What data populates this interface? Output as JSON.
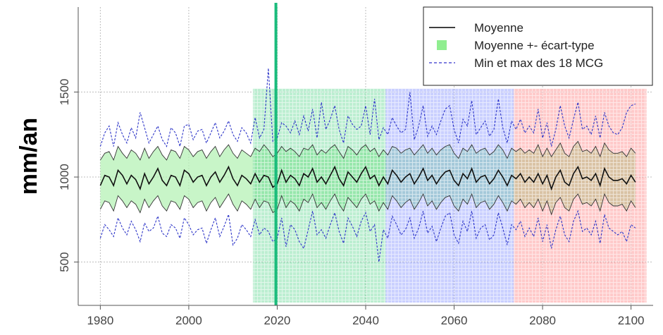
{
  "chart_data": {
    "type": "line",
    "ylabel": "mm/an",
    "xlim": [
      1975,
      2105
    ],
    "ylim": [
      245,
      2000
    ],
    "x_ticks": [
      1980,
      2000,
      2020,
      2040,
      2060,
      2080,
      2100
    ],
    "y_ticks": [
      500,
      1000,
      1500
    ],
    "grid": true,
    "legend_position": "top-right",
    "legend": [
      {
        "label": "Moyenne",
        "kind": "solid-line",
        "color": "#000000"
      },
      {
        "label": "Moyenne +- écart-type",
        "kind": "filled-square",
        "color": "#90ee90"
      },
      {
        "label": "Min et max des 18 MCG",
        "kind": "dashed-line",
        "color": "#3333cc"
      }
    ],
    "vertical_marker": {
      "x": 2019.7,
      "color": "#1abc7c"
    },
    "periods": [
      {
        "start": 2014.5,
        "end": 2044.5,
        "top": 1520,
        "color": "#2ecc71"
      },
      {
        "start": 2044.5,
        "end": 2073.5,
        "top": 1520,
        "color": "#5b6cff"
      },
      {
        "start": 2073.5,
        "end": 2103.5,
        "top": 1520,
        "color": "#ff5a5a"
      }
    ],
    "series": [
      {
        "name": "Moyenne",
        "x_start": 1980,
        "values": [
          950,
          1010,
          1000,
          950,
          1040,
          1010,
          960,
          1010,
          985,
          930,
          1020,
          960,
          1000,
          1050,
          980,
          950,
          1010,
          1000,
          950,
          1040,
          1020,
          970,
          1000,
          1010,
          950,
          1000,
          1030,
          970,
          1010,
          1060,
          990,
          950,
          1010,
          990,
          960,
          1020,
          970,
          1010,
          1000,
          940,
          960,
          1040,
          970,
          1010,
          990,
          950,
          1020,
          1000,
          1050,
          970,
          1000,
          960,
          1010,
          1060,
          990,
          950,
          1030,
          1000,
          970,
          1020,
          1060,
          990,
          1010,
          950,
          1000,
          960,
          1040,
          1010,
          970,
          1000,
          1020,
          960,
          1000,
          1050,
          980,
          1010,
          960,
          1000,
          1030,
          1040,
          980,
          950,
          1020,
          990,
          1050,
          970,
          1000,
          1010,
          960,
          990,
          1040,
          1000,
          950,
          1010,
          990,
          1020,
          970,
          1000,
          970,
          1020,
          960,
          1010,
          930,
          1000,
          1040,
          970,
          950,
          1020,
          1060,
          990,
          1000,
          980,
          1020,
          950,
          1050,
          1000,
          980,
          980,
          990,
          960,
          1010,
          970
        ]
      },
      {
        "name": "Moyenne + écart-type",
        "x_start": 1980,
        "values": [
          1100,
          1140,
          1150,
          1100,
          1180,
          1140,
          1110,
          1160,
          1140,
          1100,
          1170,
          1110,
          1150,
          1180,
          1130,
          1100,
          1160,
          1150,
          1110,
          1180,
          1160,
          1120,
          1150,
          1160,
          1110,
          1150,
          1180,
          1120,
          1160,
          1190,
          1140,
          1110,
          1160,
          1140,
          1120,
          1170,
          1150,
          1190,
          1160,
          1120,
          1140,
          1180,
          1150,
          1170,
          1150,
          1120,
          1170,
          1160,
          1190,
          1130,
          1160,
          1140,
          1170,
          1190,
          1150,
          1110,
          1180,
          1160,
          1130,
          1170,
          1190,
          1150,
          1170,
          1120,
          1160,
          1130,
          1180,
          1170,
          1140,
          1160,
          1170,
          1130,
          1160,
          1190,
          1140,
          1170,
          1130,
          1160,
          1180,
          1190,
          1140,
          1110,
          1170,
          1150,
          1190,
          1140,
          1160,
          1170,
          1130,
          1150,
          1190,
          1160,
          1110,
          1170,
          1150,
          1170,
          1140,
          1160,
          1140,
          1190,
          1120,
          1170,
          1120,
          1160,
          1200,
          1140,
          1120,
          1180,
          1210,
          1150,
          1160,
          1140,
          1180,
          1120,
          1200,
          1160,
          1140,
          1140,
          1150,
          1120,
          1170,
          1140
        ]
      },
      {
        "name": "Moyenne - écart-type",
        "x_start": 1980,
        "values": [
          810,
          860,
          850,
          800,
          890,
          860,
          820,
          860,
          840,
          790,
          870,
          820,
          860,
          890,
          830,
          800,
          860,
          850,
          810,
          890,
          870,
          820,
          850,
          860,
          800,
          850,
          880,
          820,
          860,
          900,
          840,
          800,
          860,
          840,
          810,
          870,
          820,
          860,
          850,
          790,
          810,
          890,
          820,
          860,
          840,
          800,
          870,
          850,
          900,
          820,
          850,
          810,
          860,
          900,
          840,
          800,
          880,
          850,
          820,
          870,
          900,
          840,
          860,
          800,
          850,
          810,
          890,
          860,
          820,
          850,
          870,
          810,
          850,
          900,
          830,
          860,
          810,
          850,
          880,
          890,
          830,
          800,
          870,
          840,
          900,
          820,
          850,
          860,
          810,
          840,
          890,
          850,
          800,
          860,
          840,
          870,
          820,
          850,
          820,
          870,
          800,
          860,
          780,
          850,
          880,
          820,
          800,
          870,
          900,
          840,
          850,
          830,
          870,
          800,
          900,
          850,
          830,
          830,
          840,
          800,
          860,
          820
        ]
      },
      {
        "name": "Max des 18 MCG",
        "x_start": 1980,
        "values": [
          1180,
          1260,
          1300,
          1180,
          1320,
          1250,
          1200,
          1290,
          1230,
          1380,
          1290,
          1200,
          1250,
          1300,
          1220,
          1180,
          1290,
          1260,
          1180,
          1300,
          1310,
          1220,
          1270,
          1280,
          1200,
          1260,
          1320,
          1230,
          1270,
          1330,
          1250,
          1210,
          1290,
          1260,
          1200,
          1350,
          1230,
          1280,
          1640,
          1210,
          1230,
          1320,
          1300,
          1260,
          1330,
          1250,
          1360,
          1270,
          1400,
          1230,
          1440,
          1280,
          1340,
          1420,
          1280,
          1200,
          1360,
          1310,
          1280,
          1300,
          1420,
          1250,
          1460,
          1220,
          1290,
          1250,
          1350,
          1300,
          1260,
          1280,
          1500,
          1220,
          1300,
          1420,
          1240,
          1300,
          1250,
          1330,
          1400,
          1420,
          1280,
          1200,
          1340,
          1300,
          1450,
          1250,
          1290,
          1330,
          1240,
          1280,
          1460,
          1290,
          1200,
          1330,
          1280,
          1340,
          1260,
          1300,
          1260,
          1400,
          1230,
          1320,
          1180,
          1280,
          1420,
          1300,
          1230,
          1340,
          1440,
          1280,
          1300,
          1250,
          1360,
          1230,
          1380,
          1300,
          1260,
          1250,
          1290,
          1380,
          1420,
          1430
        ]
      },
      {
        "name": "Min des 18 MCG",
        "x_start": 1980,
        "values": [
          640,
          720,
          690,
          650,
          760,
          700,
          660,
          740,
          690,
          620,
          730,
          680,
          700,
          770,
          670,
          650,
          720,
          700,
          640,
          760,
          720,
          660,
          690,
          700,
          610,
          690,
          760,
          650,
          710,
          780,
          600,
          640,
          720,
          690,
          650,
          750,
          660,
          700,
          680,
          620,
          640,
          760,
          590,
          720,
          690,
          620,
          580,
          690,
          800,
          660,
          690,
          640,
          720,
          790,
          680,
          610,
          760,
          710,
          650,
          740,
          790,
          680,
          720,
          500,
          690,
          640,
          770,
          720,
          660,
          690,
          760,
          640,
          700,
          800,
          670,
          710,
          620,
          700,
          770,
          790,
          660,
          610,
          740,
          680,
          800,
          640,
          700,
          720,
          630,
          660,
          790,
          700,
          600,
          720,
          690,
          740,
          650,
          700,
          650,
          760,
          620,
          720,
          580,
          690,
          770,
          660,
          620,
          740,
          800,
          680,
          700,
          660,
          740,
          610,
          780,
          700,
          680,
          660,
          680,
          620,
          720,
          700
        ]
      }
    ]
  }
}
